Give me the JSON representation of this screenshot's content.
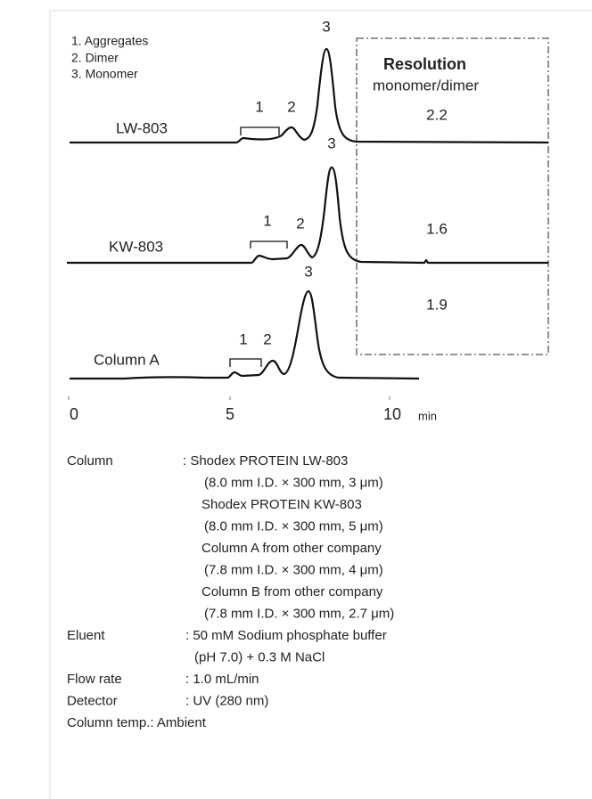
{
  "legend": [
    "1. Aggregates",
    "2. Dimer",
    "3. Monomer"
  ],
  "resolution": {
    "title": "Resolution",
    "subtitle": "monomer/dimer"
  },
  "traces": [
    {
      "label": "LW-803",
      "resolution": "2.2",
      "peaks": [
        "1",
        "2",
        "3"
      ]
    },
    {
      "label": "KW-803",
      "resolution": "1.6",
      "peaks": [
        "1",
        "2",
        "3"
      ]
    },
    {
      "label": "Column A",
      "resolution": "1.9",
      "peaks": [
        "1",
        "2",
        "3"
      ]
    }
  ],
  "axis": {
    "ticks": [
      "0",
      "5",
      "10"
    ],
    "unit": "min"
  },
  "conditions": [
    {
      "label": "Column",
      "lines": [
        ": Shodex PROTEIN LW-803",
        "(8.0 mm I.D. × 300 mm, 3 μm)",
        "Shodex PROTEIN KW-803",
        "(8.0 mm I.D. × 300 mm, 5 μm)",
        "Column A from other company",
        "(7.8 mm I.D. × 300 mm, 4 μm)",
        "Column B from other company",
        "(7.8 mm I.D. × 300 mm, 2.7 μm)"
      ]
    },
    {
      "label": "Eluent",
      "lines": [
        ": 50 mM Sodium phosphate buffer",
        "(pH 7.0) + 0.3 M NaCl"
      ]
    },
    {
      "label": "Flow rate",
      "lines": [
        ": 1.0 mL/min"
      ]
    },
    {
      "label": "Detector",
      "lines": [
        ": UV (280 nm)"
      ]
    },
    {
      "label": "Column temp.",
      "lines": [
        ": Ambient"
      ]
    }
  ]
}
